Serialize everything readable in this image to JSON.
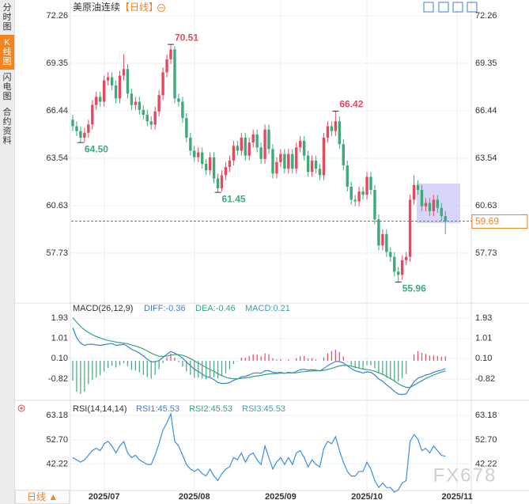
{
  "sidebar": [
    "分时图",
    "K线图",
    "闪电图",
    "合约资料"
  ],
  "footer": {
    "period": "日线 ▲",
    "watermark": "FX678"
  },
  "chart_data": [
    {
      "type": "candlestick",
      "title": "美原油连续",
      "subtitle": "【日线】",
      "xlim": [
        -0.4,
        101.4
      ],
      "xticks": [
        {
          "value": 8,
          "label": "2025/07"
        },
        {
          "value": 31,
          "label": "2025/08"
        },
        {
          "value": 53,
          "label": "2025/09"
        },
        {
          "value": 75,
          "label": "2025/10"
        },
        {
          "value": 98,
          "label": "2025/11"
        }
      ],
      "ylim": [
        54.82,
        72.84
      ],
      "yticks": [
        57.73,
        60.63,
        63.54,
        66.44,
        69.35,
        72.26
      ],
      "up_color": "#e8485f",
      "down_color": "#3daa7a",
      "open": [
        65.9,
        65.5,
        65.2,
        64.8,
        65.1,
        65.6,
        66.8,
        67.3,
        67.0,
        68.3,
        68.5,
        68.0,
        67.2,
        68.6,
        69.0,
        67.5,
        66.8,
        67.0,
        66.5,
        66.2,
        65.8,
        65.6,
        66.4,
        67.4,
        68.8,
        69.6,
        70.2,
        67.2,
        67.0,
        66.0,
        64.8,
        64.0,
        63.6,
        63.9,
        63.2,
        62.8,
        63.6,
        62.3,
        61.7,
        62.5,
        63.0,
        63.4,
        64.3,
        64.0,
        64.8,
        63.7,
        64.5,
        65.0,
        64.2,
        63.5,
        65.3,
        64.1,
        62.6,
        63.3,
        63.8,
        62.9,
        63.8,
        62.9,
        64.2,
        64.6,
        63.7,
        62.7,
        63.4,
        62.9,
        62.5,
        64.8,
        65.5,
        65.2,
        65.8,
        64.4,
        63.1,
        61.8,
        61.0,
        60.9,
        61.5,
        61.3,
        62.4,
        61.6,
        59.8,
        58.2,
        58.9,
        57.8,
        57.5,
        56.6,
        56.4,
        57.3,
        57.5,
        61.0,
        61.9,
        61.6,
        60.6,
        60.8,
        60.3,
        61.0,
        60.5,
        60.0
      ],
      "high": [
        66.2,
        65.8,
        65.5,
        65.4,
        65.9,
        67.1,
        67.6,
        67.6,
        68.6,
        68.8,
        68.8,
        68.3,
        68.9,
        69.9,
        69.3,
        67.8,
        67.3,
        67.3,
        66.8,
        66.5,
        66.1,
        66.7,
        67.7,
        69.1,
        69.9,
        70.51,
        70.4,
        67.5,
        67.3,
        66.3,
        65.1,
        64.3,
        64.2,
        64.2,
        63.5,
        63.9,
        63.9,
        62.6,
        62.8,
        63.3,
        63.7,
        64.6,
        64.6,
        65.1,
        65.1,
        64.8,
        65.3,
        65.3,
        64.5,
        65.6,
        65.6,
        64.4,
        63.6,
        64.1,
        64.1,
        64.1,
        64.1,
        64.5,
        64.9,
        64.9,
        64.0,
        63.7,
        63.7,
        63.2,
        65.1,
        65.8,
        65.8,
        66.42,
        66.1,
        64.7,
        63.4,
        62.1,
        61.3,
        61.8,
        61.8,
        62.7,
        62.7,
        61.9,
        60.1,
        59.2,
        59.2,
        58.1,
        57.8,
        56.9,
        57.6,
        57.8,
        61.3,
        62.5,
        62.2,
        61.9,
        61.1,
        61.1,
        61.3,
        61.3,
        60.8,
        60.3
      ],
      "low": [
        65.2,
        64.9,
        64.5,
        64.5,
        64.8,
        65.3,
        66.5,
        66.7,
        66.7,
        68.0,
        67.7,
        66.9,
        66.9,
        68.3,
        67.2,
        66.5,
        66.5,
        66.2,
        65.9,
        65.5,
        65.3,
        65.3,
        66.1,
        67.1,
        68.5,
        69.3,
        66.9,
        66.7,
        65.7,
        64.5,
        63.7,
        63.3,
        63.3,
        62.9,
        62.5,
        62.5,
        62.0,
        61.45,
        61.5,
        62.2,
        62.7,
        63.1,
        63.7,
        63.7,
        63.4,
        63.4,
        64.2,
        63.9,
        63.2,
        63.2,
        63.8,
        62.3,
        62.3,
        63.0,
        62.6,
        62.6,
        62.6,
        62.6,
        63.9,
        63.4,
        62.4,
        62.4,
        62.6,
        62.2,
        62.2,
        64.5,
        64.9,
        64.9,
        64.1,
        62.8,
        61.5,
        60.7,
        60.6,
        60.6,
        61.0,
        61.0,
        61.3,
        59.5,
        57.9,
        57.9,
        57.5,
        57.2,
        56.3,
        55.96,
        56.1,
        57.0,
        57.2,
        60.7,
        61.3,
        60.3,
        60.3,
        60.0,
        60.0,
        60.2,
        59.7,
        58.9
      ],
      "close": [
        65.5,
        65.2,
        64.8,
        65.1,
        65.6,
        66.8,
        67.3,
        67.0,
        68.3,
        68.5,
        68.0,
        67.2,
        68.6,
        69.0,
        67.5,
        66.8,
        67.0,
        66.5,
        66.2,
        65.8,
        65.6,
        66.4,
        67.4,
        68.8,
        69.6,
        70.2,
        67.2,
        67.0,
        66.0,
        64.8,
        64.0,
        63.6,
        63.9,
        63.2,
        62.8,
        63.6,
        62.3,
        61.7,
        62.5,
        63.0,
        63.4,
        64.3,
        64.0,
        64.8,
        63.7,
        64.5,
        65.0,
        64.2,
        63.5,
        65.3,
        64.1,
        62.6,
        63.3,
        63.8,
        62.9,
        63.8,
        62.9,
        64.2,
        64.6,
        63.7,
        62.7,
        63.4,
        62.9,
        62.5,
        64.8,
        65.5,
        65.2,
        65.8,
        64.4,
        63.1,
        61.8,
        61.0,
        60.9,
        61.5,
        61.3,
        62.4,
        61.6,
        59.8,
        58.2,
        58.9,
        57.8,
        57.5,
        56.6,
        56.4,
        57.3,
        57.5,
        61.0,
        61.9,
        61.6,
        60.6,
        60.8,
        60.3,
        61.0,
        60.5,
        60.0,
        59.69
      ],
      "annotations": [
        {
          "x": 25,
          "y": 70.51,
          "label": "70.51"
        },
        {
          "x": 2,
          "y": 64.5,
          "label": "64.50"
        },
        {
          "x": 37,
          "y": 61.45,
          "label": "61.45"
        },
        {
          "x": 67,
          "y": 66.42,
          "label": "66.42"
        },
        {
          "x": 83,
          "y": 55.96,
          "label": "55.96"
        }
      ],
      "last_price": 59.69
    },
    {
      "type": "macd",
      "title": "MACD(26,12,9)",
      "xlim": [
        -0.4,
        101.4
      ],
      "ylim": [
        -1.75,
        2.54
      ],
      "yticks": [
        -0.82,
        {
          "value": 0.1,
          "label": "0.10"
        },
        1.01,
        1.93
      ],
      "series": [
        {
          "name": "DIFF:-0.36",
          "color": "#3a7fd5",
          "values": [
            1.5,
            1.05,
            0.8,
            0.7,
            0.75,
            0.75,
            0.72,
            0.7,
            0.73,
            0.76,
            0.78,
            0.7,
            0.72,
            0.75,
            0.65,
            0.52,
            0.45,
            0.35,
            0.22,
            0.08,
            -0.05,
            -0.05,
            0.02,
            0.15,
            0.3,
            0.42,
            0.35,
            0.25,
            0.12,
            -0.05,
            -0.22,
            -0.38,
            -0.48,
            -0.6,
            -0.72,
            -0.75,
            -0.85,
            -0.98,
            -1.02,
            -1.02,
            -0.98,
            -0.88,
            -0.82,
            -0.72,
            -0.7,
            -0.64,
            -0.56,
            -0.54,
            -0.56,
            -0.45,
            -0.44,
            -0.52,
            -0.54,
            -0.52,
            -0.56,
            -0.52,
            -0.55,
            -0.48,
            -0.4,
            -0.38,
            -0.42,
            -0.4,
            -0.42,
            -0.45,
            -0.35,
            -0.22,
            -0.12,
            -0.03,
            -0.03,
            -0.1,
            -0.22,
            -0.35,
            -0.45,
            -0.5,
            -0.55,
            -0.5,
            -0.52,
            -0.64,
            -0.82,
            -0.92,
            -1.08,
            -1.22,
            -1.38,
            -1.5,
            -1.52,
            -1.5,
            -1.2,
            -0.95,
            -0.78,
            -0.72,
            -0.64,
            -0.6,
            -0.52,
            -0.46,
            -0.42,
            -0.36
          ]
        },
        {
          "name": "DEA:-0.46",
          "color": "#33a576",
          "values": [
            1.95,
            1.75,
            1.55,
            1.4,
            1.28,
            1.18,
            1.1,
            1.03,
            0.97,
            0.92,
            0.89,
            0.85,
            0.82,
            0.8,
            0.77,
            0.72,
            0.67,
            0.61,
            0.54,
            0.45,
            0.35,
            0.27,
            0.21,
            0.2,
            0.22,
            0.26,
            0.28,
            0.28,
            0.25,
            0.19,
            0.1,
            0.0,
            -0.1,
            -0.2,
            -0.3,
            -0.39,
            -0.48,
            -0.58,
            -0.67,
            -0.74,
            -0.79,
            -0.81,
            -0.81,
            -0.79,
            -0.77,
            -0.75,
            -0.71,
            -0.68,
            -0.66,
            -0.62,
            -0.59,
            -0.58,
            -0.57,
            -0.56,
            -0.56,
            -0.55,
            -0.55,
            -0.54,
            -0.51,
            -0.49,
            -0.47,
            -0.46,
            -0.45,
            -0.45,
            -0.43,
            -0.39,
            -0.34,
            -0.28,
            -0.23,
            -0.2,
            -0.21,
            -0.24,
            -0.28,
            -0.33,
            -0.37,
            -0.4,
            -0.42,
            -0.47,
            -0.54,
            -0.61,
            -0.7,
            -0.8,
            -0.92,
            -1.03,
            -1.13,
            -1.2,
            -1.2,
            -1.1,
            -1.0,
            -0.9,
            -0.8,
            -0.72,
            -0.64,
            -0.57,
            -0.51,
            -0.46
          ]
        },
        {
          "name": "MACD:0.21",
          "color": "#3aa0b0",
          "kind": "histogram",
          "up_color": "#e8485f",
          "down_color": "#3daa7a",
          "values": [
            -0.9,
            -1.4,
            -1.5,
            -1.4,
            -1.06,
            -0.86,
            -0.76,
            -0.66,
            -0.48,
            -0.32,
            -0.22,
            -0.3,
            -0.2,
            -0.1,
            -0.24,
            -0.4,
            -0.44,
            -0.52,
            -0.64,
            -0.74,
            -0.8,
            -0.64,
            -0.38,
            -0.1,
            0.16,
            0.32,
            0.14,
            -0.06,
            -0.26,
            -0.48,
            -0.64,
            -0.76,
            -0.76,
            -0.8,
            -0.84,
            -0.72,
            -0.74,
            -0.8,
            -0.7,
            -0.56,
            -0.38,
            -0.14,
            -0.02,
            0.14,
            0.14,
            0.22,
            0.3,
            0.28,
            0.2,
            0.34,
            0.3,
            0.12,
            0.06,
            0.08,
            0.0,
            0.06,
            0.0,
            0.12,
            0.22,
            0.22,
            0.1,
            0.12,
            0.06,
            0.0,
            0.16,
            0.34,
            0.44,
            0.5,
            0.4,
            0.2,
            -0.02,
            -0.22,
            -0.34,
            -0.34,
            -0.36,
            -0.2,
            -0.2,
            -0.34,
            -0.56,
            -0.62,
            -0.76,
            -0.84,
            -0.92,
            -0.94,
            -0.78,
            -0.6,
            0.0,
            0.3,
            0.44,
            0.36,
            0.32,
            0.24,
            0.24,
            0.22,
            0.18,
            0.21
          ]
        }
      ]
    },
    {
      "type": "rsi",
      "title": "RSI(14,14,14)",
      "xlim": [
        -0.4,
        101.4
      ],
      "ylim": [
        30.69,
        69.12
      ],
      "yticks": [
        42.22,
        {
          "value": 52.7,
          "label": "52.70"
        },
        63.18
      ],
      "legend": [
        {
          "name": "RSI1:45.53",
          "color": "#3a7fd5"
        },
        {
          "name": "RSI2:45.53",
          "color": "#33a576"
        },
        {
          "name": "RSI3:45.53",
          "color": "#3aa0b0"
        }
      ],
      "color": "#3a8ee0",
      "values": [
        45,
        44,
        43,
        44,
        46,
        48,
        49,
        48,
        51,
        52,
        50,
        47,
        50,
        52,
        47,
        45,
        46,
        44,
        43,
        42,
        42,
        46,
        51,
        57,
        60,
        64,
        52,
        50,
        46,
        42,
        40,
        39,
        40,
        38,
        37,
        40,
        37,
        35,
        38,
        40,
        41,
        45,
        44,
        47,
        43,
        46,
        47,
        44,
        42,
        50,
        45,
        40,
        43,
        45,
        42,
        45,
        42,
        47,
        48,
        45,
        41,
        44,
        42,
        41,
        49,
        52,
        51,
        54,
        48,
        43,
        39,
        37,
        37,
        39,
        39,
        43,
        40,
        35,
        32,
        34,
        32,
        32,
        30,
        31,
        34,
        35,
        52,
        55,
        53,
        48,
        49,
        47,
        50,
        48,
        46,
        45.53
      ]
    }
  ]
}
